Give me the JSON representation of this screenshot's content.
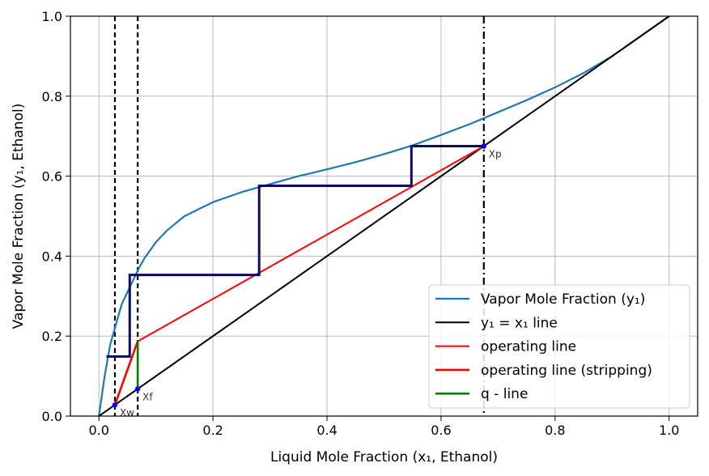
{
  "chart_data": {
    "type": "line",
    "xlabel": "Liquid Mole Fraction (x₁, Ethanol)",
    "ylabel": "Vapor Mole Fraction (y₁, Ethanol)",
    "xlim": [
      -0.05,
      1.05
    ],
    "ylim": [
      0.0,
      1.0
    ],
    "xticks": [
      0.0,
      0.2,
      0.4,
      0.6,
      0.8,
      1.0
    ],
    "yticks": [
      0.0,
      0.2,
      0.4,
      0.6,
      0.8,
      1.0
    ],
    "xtick_labels": [
      "0.0",
      "0.2",
      "0.4",
      "0.6",
      "0.8",
      "1.0"
    ],
    "ytick_labels": [
      "0.0",
      "0.2",
      "0.4",
      "0.6",
      "0.8",
      "1.0"
    ],
    "grid": true,
    "legend_position": "lower-right",
    "series": [
      {
        "name": "Vapor Mole Fraction (y₁)",
        "color": "#1f77b4",
        "x": [
          0.0,
          0.005,
          0.01,
          0.02,
          0.03,
          0.04,
          0.05,
          0.06,
          0.07,
          0.08,
          0.1,
          0.12,
          0.15,
          0.2,
          0.25,
          0.3,
          0.35,
          0.4,
          0.45,
          0.5,
          0.55,
          0.6,
          0.65,
          0.7,
          0.75,
          0.8,
          0.85,
          0.9,
          0.95,
          1.0
        ],
        "y": [
          0.0,
          0.05,
          0.1,
          0.18,
          0.23,
          0.28,
          0.31,
          0.34,
          0.37,
          0.395,
          0.435,
          0.465,
          0.5,
          0.535,
          0.56,
          0.58,
          0.6,
          0.617,
          0.635,
          0.655,
          0.677,
          0.703,
          0.73,
          0.76,
          0.79,
          0.822,
          0.858,
          0.9,
          0.95,
          1.0
        ]
      },
      {
        "name": "y₁ = x₁ line",
        "color": "#000000",
        "x": [
          0.0,
          1.0
        ],
        "y": [
          0.0,
          1.0
        ]
      },
      {
        "name": "operating line",
        "color": "#ff0000",
        "x": [
          0.068,
          0.675
        ],
        "y": [
          0.187,
          0.675
        ]
      },
      {
        "name": "operating line (stripping)",
        "color": "#ff0000",
        "x": [
          0.028,
          0.068
        ],
        "y": [
          0.028,
          0.187
        ]
      },
      {
        "name": "q - line",
        "color": "#008000",
        "x": [
          0.068,
          0.068
        ],
        "y": [
          0.068,
          0.187
        ]
      }
    ],
    "steps": {
      "color": "#0b0b66",
      "points": [
        [
          0.675,
          0.675
        ],
        [
          0.548,
          0.675
        ],
        [
          0.548,
          0.576
        ],
        [
          0.281,
          0.576
        ],
        [
          0.281,
          0.353
        ],
        [
          0.054,
          0.353
        ],
        [
          0.054,
          0.149
        ],
        [
          0.013,
          0.149
        ]
      ]
    },
    "vertical_lines": [
      {
        "x": 0.028,
        "style": "dashed",
        "color": "#000000"
      },
      {
        "x": 0.068,
        "style": "dashed",
        "color": "#000000"
      },
      {
        "x": 0.675,
        "style": "dashdot",
        "color": "#000000"
      }
    ],
    "points": [
      {
        "label": "Xw",
        "x": 0.028,
        "y": 0.028
      },
      {
        "label": "Xf",
        "x": 0.068,
        "y": 0.068
      },
      {
        "label": "Xp",
        "x": 0.675,
        "y": 0.675
      }
    ],
    "point_color": "#0000ff"
  }
}
